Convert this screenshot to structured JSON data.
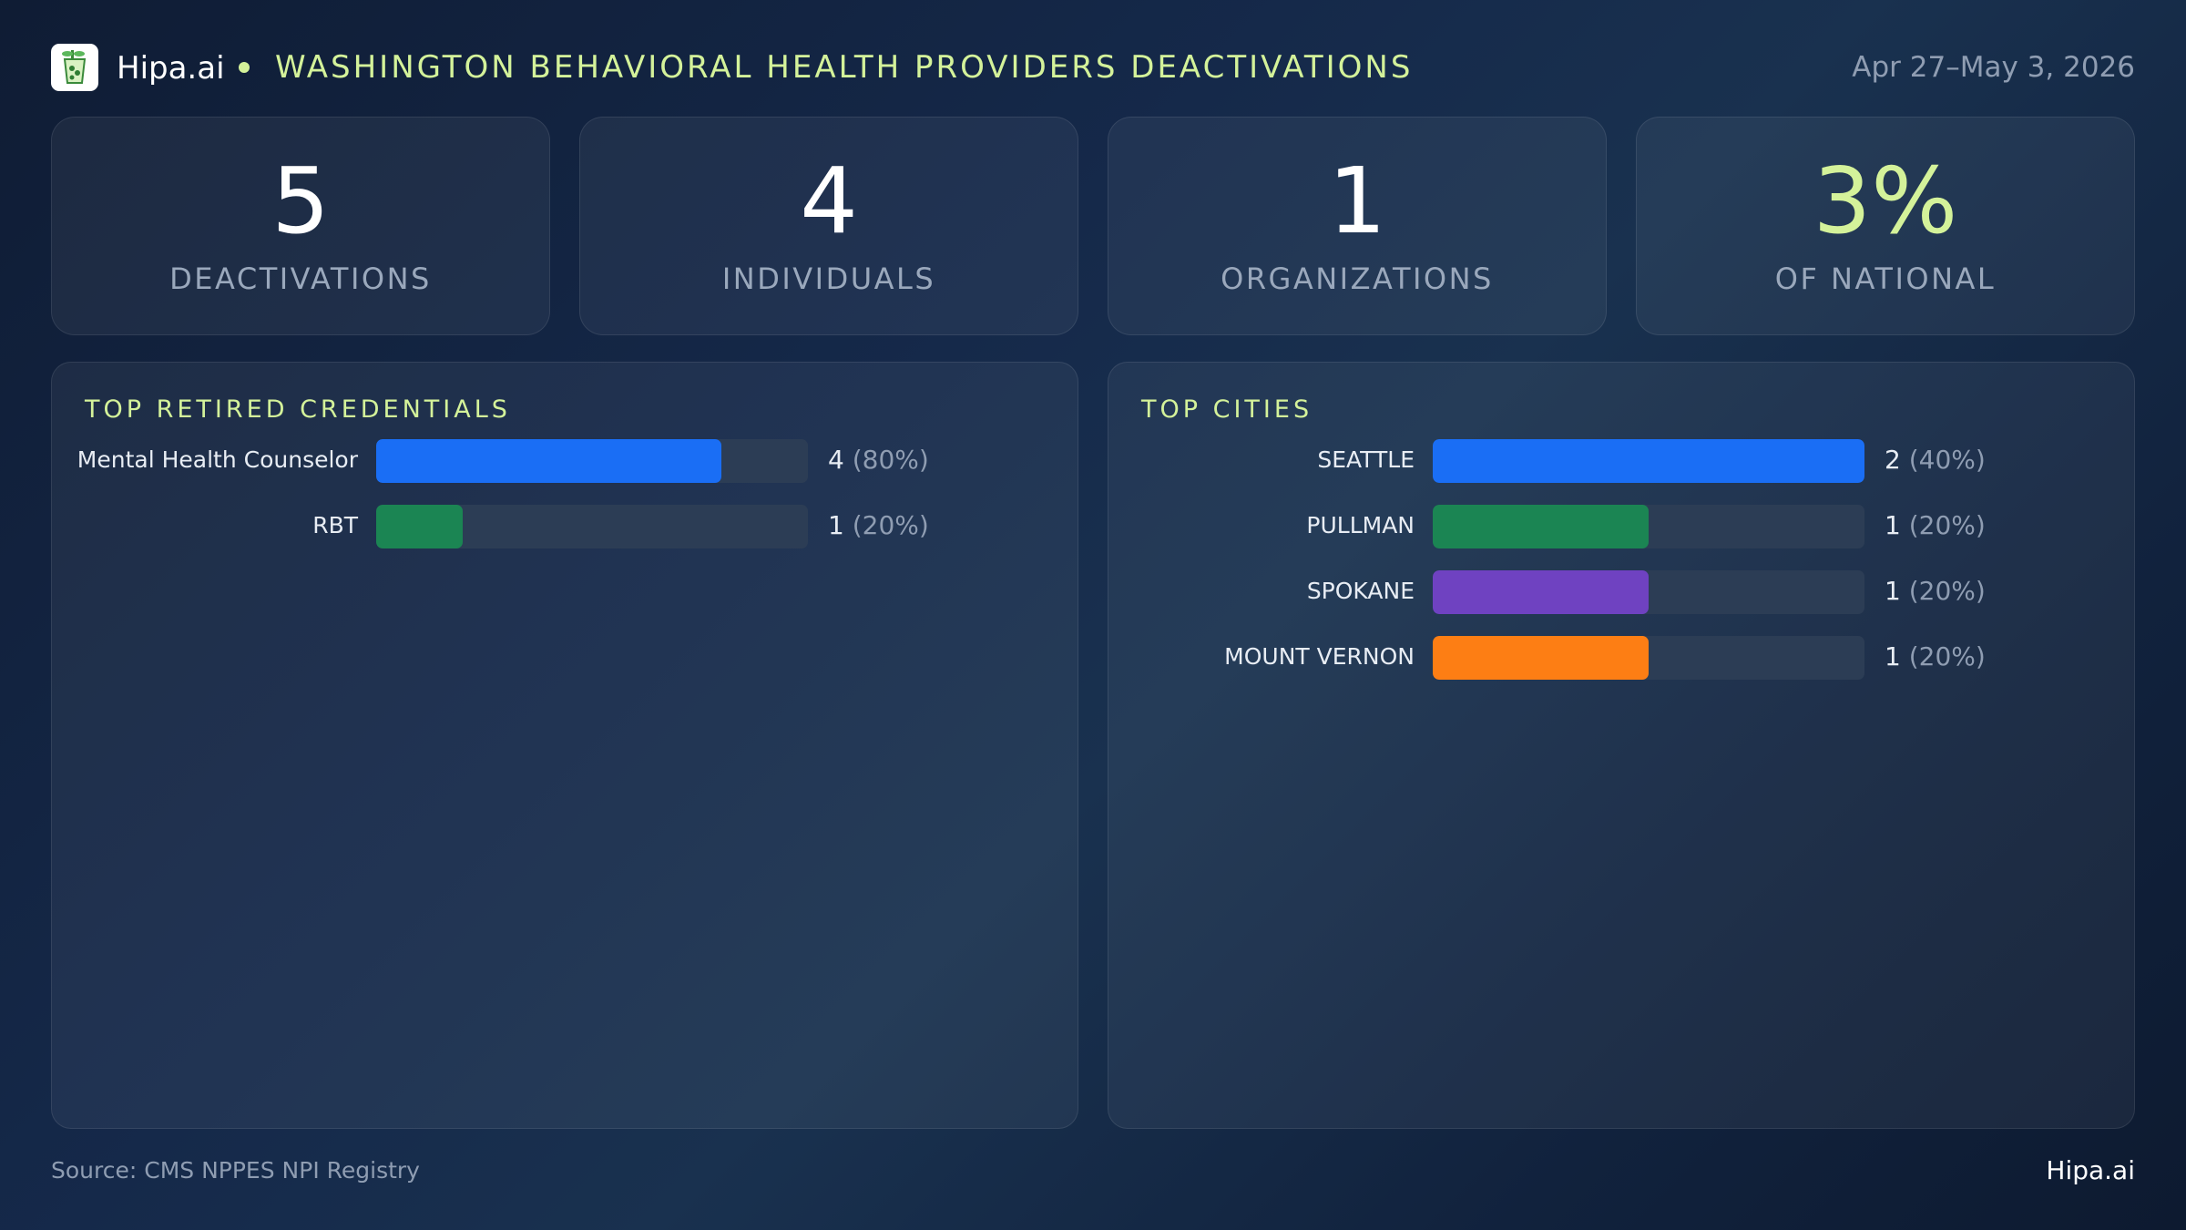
{
  "header": {
    "brand": "Hipa.ai",
    "title": "WASHINGTON BEHAVIORAL HEALTH PROVIDERS DEACTIVATIONS",
    "date_range": "Apr 27–May 3, 2026",
    "logo_icon": "drink-cup-icon"
  },
  "kpis": [
    {
      "value": "5",
      "label": "DEACTIVATIONS"
    },
    {
      "value": "4",
      "label": "INDIVIDUALS"
    },
    {
      "value": "1",
      "label": "ORGANIZATIONS"
    },
    {
      "value": "3%",
      "label": "OF NATIONAL",
      "accent": "#d4f29a"
    }
  ],
  "chart_data": [
    {
      "type": "bar",
      "orientation": "horizontal",
      "title": "TOP RETIRED CREDENTIALS",
      "categories": [
        "Mental Health Counselor",
        "RBT"
      ],
      "values": [
        4,
        1
      ],
      "value_labels": [
        "4",
        "1"
      ],
      "percent_labels": [
        "(80%)",
        "(20%)"
      ],
      "colors": [
        "#1a6ef5",
        "#1b8553"
      ],
      "xlim": [
        0,
        5
      ]
    },
    {
      "type": "bar",
      "orientation": "horizontal",
      "title": "TOP CITIES",
      "categories": [
        "SEATTLE",
        "PULLMAN",
        "SPOKANE",
        "MOUNT VERNON"
      ],
      "values": [
        2,
        1,
        1,
        1
      ],
      "value_labels": [
        "2",
        "1",
        "1",
        "1"
      ],
      "percent_labels": [
        "(40%)",
        "(20%)",
        "(20%)",
        "(20%)"
      ],
      "colors": [
        "#1a6ef5",
        "#1b8553",
        "#6f42c1",
        "#fd7e14"
      ],
      "xlim": [
        0,
        2
      ]
    }
  ],
  "footer": {
    "source": "Source: CMS NPPES NPI Registry",
    "brand": "Hipa.ai"
  }
}
